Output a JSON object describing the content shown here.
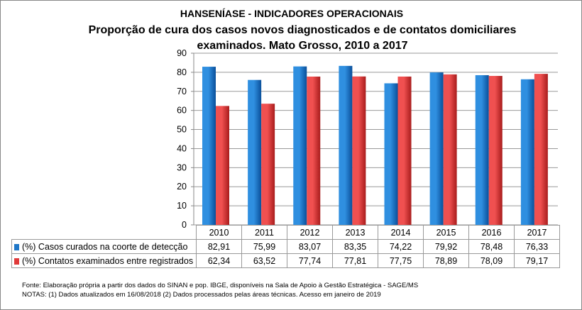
{
  "chart_data": {
    "type": "bar",
    "title": "HANSENÍASE - INDICADORES OPERACIONAIS",
    "subtitle": "Proporção de cura dos casos novos diagnosticados e de contatos domiciliares examinados. Mato Grosso, 2010 a 2017",
    "categories": [
      "2010",
      "2011",
      "2012",
      "2013",
      "2014",
      "2015",
      "2016",
      "2017"
    ],
    "series": [
      {
        "name": "(%) Casos curados na coorte de detecção",
        "color": "#1f77c8",
        "values": [
          82.91,
          75.99,
          83.07,
          83.35,
          74.22,
          79.92,
          78.48,
          76.33
        ],
        "labels": [
          "82,91",
          "75,99",
          "83,07",
          "83,35",
          "74,22",
          "79,92",
          "78,48",
          "76,33"
        ]
      },
      {
        "name": "(%) Contatos examinados entre registrados",
        "color": "#e03a3a",
        "values": [
          62.34,
          63.52,
          77.74,
          77.81,
          77.75,
          78.89,
          78.09,
          79.17
        ],
        "labels": [
          "62,34",
          "63,52",
          "77,74",
          "77,81",
          "77,75",
          "78,89",
          "78,09",
          "79,17"
        ]
      }
    ],
    "ylim": [
      0,
      90
    ],
    "yticks": [
      "0",
      "10",
      "20",
      "30",
      "40",
      "50",
      "60",
      "70",
      "80",
      "90"
    ],
    "grid": true,
    "legend": "data-table"
  },
  "footer": {
    "source": "Fonte:  Elaboração própria a partir dos dados do  SINAN  e  pop. IBGE, disponíveis na Sala de Apoio à Gestão Estratégica - SAGE/MS",
    "notes": "NOTAS: (1) Dados atualizados em 16/08/2018 (2) Dados processados pelas áreas técnicas. Acesso em janeiro de 2019"
  }
}
